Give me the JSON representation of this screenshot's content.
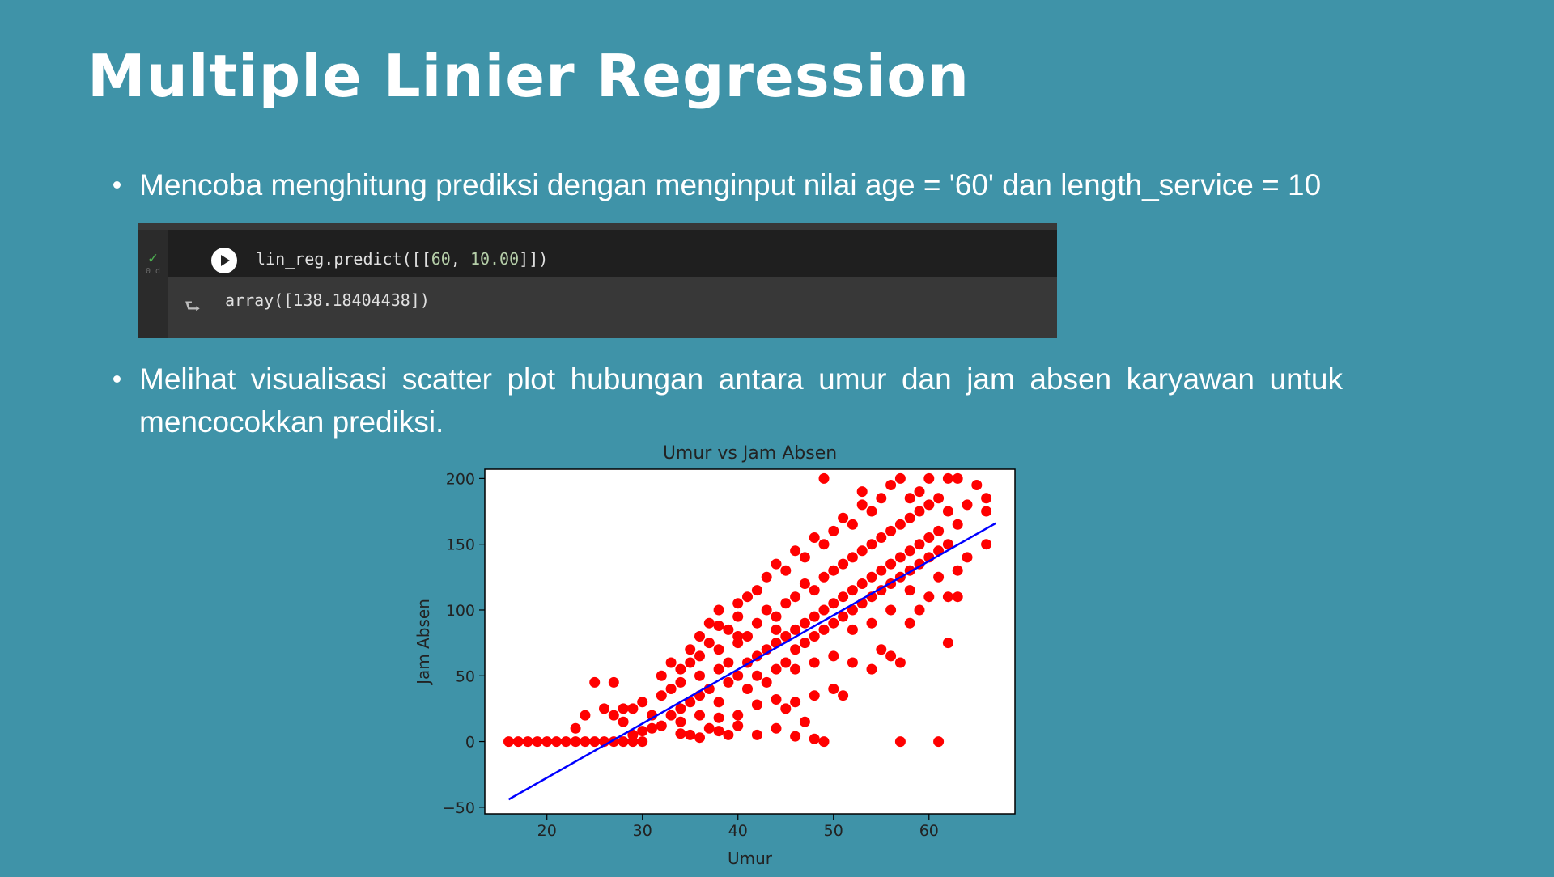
{
  "slide": {
    "title": "Multiple Linier Regression",
    "bullet_1": "Mencoba menghitung prediksi dengan menginput nilai age = '60' dan length_service = 10",
    "bullet_2_line1": "Melihat visualisasi scatter plot hubungan antara umur dan jam absen karyawan untuk",
    "bullet_2_line2": "mencocokkan prediksi."
  },
  "code_cell": {
    "status": "✓",
    "exec_time": "0 d",
    "input_prefix": "lin_reg.predict([[",
    "input_num_1": "60",
    "input_sep": ", ",
    "input_num_2": "10.00",
    "input_suffix": "]])",
    "output": "array([138.18404438])"
  },
  "colors": {
    "background": "#3f93a8",
    "points": "#ff0000",
    "line": "#0000ff"
  },
  "chart_data": {
    "type": "scatter",
    "title": "Umur vs Jam Absen",
    "xlabel": "Umur",
    "ylabel": "Jam Absen",
    "xlim": [
      13.5,
      69
    ],
    "ylim": [
      -55,
      207
    ],
    "xticks": [
      20,
      30,
      40,
      50,
      60
    ],
    "yticks": [
      -50,
      0,
      50,
      100,
      150,
      200
    ],
    "grid": false,
    "regression_line": {
      "x": [
        16,
        67
      ],
      "y": [
        -44,
        166
      ]
    },
    "points": [
      [
        16,
        0
      ],
      [
        17,
        0
      ],
      [
        18,
        0
      ],
      [
        19,
        0
      ],
      [
        20,
        0
      ],
      [
        21,
        0
      ],
      [
        22,
        0
      ],
      [
        23,
        0
      ],
      [
        24,
        0
      ],
      [
        25,
        0
      ],
      [
        26,
        0
      ],
      [
        27,
        0
      ],
      [
        28,
        0
      ],
      [
        29,
        0
      ],
      [
        30,
        0
      ],
      [
        23,
        10
      ],
      [
        24,
        20
      ],
      [
        25,
        45
      ],
      [
        27,
        45
      ],
      [
        26,
        25
      ],
      [
        27,
        20
      ],
      [
        28,
        15
      ],
      [
        28,
        25
      ],
      [
        29,
        25
      ],
      [
        30,
        30
      ],
      [
        29,
        5
      ],
      [
        31,
        10
      ],
      [
        31,
        20
      ],
      [
        32,
        35
      ],
      [
        32,
        50
      ],
      [
        33,
        40
      ],
      [
        33,
        20
      ],
      [
        33,
        60
      ],
      [
        34,
        45
      ],
      [
        34,
        55
      ],
      [
        34,
        15
      ],
      [
        35,
        30
      ],
      [
        35,
        60
      ],
      [
        35,
        70
      ],
      [
        35,
        5
      ],
      [
        36,
        50
      ],
      [
        36,
        80
      ],
      [
        36,
        65
      ],
      [
        36,
        20
      ],
      [
        37,
        40
      ],
      [
        37,
        75
      ],
      [
        37,
        90
      ],
      [
        37,
        10
      ],
      [
        38,
        55
      ],
      [
        38,
        70
      ],
      [
        38,
        100
      ],
      [
        38,
        30
      ],
      [
        39,
        45
      ],
      [
        39,
        85
      ],
      [
        39,
        60
      ],
      [
        39,
        5
      ],
      [
        40,
        50
      ],
      [
        40,
        75
      ],
      [
        40,
        95
      ],
      [
        40,
        20
      ],
      [
        40,
        105
      ],
      [
        41,
        60
      ],
      [
        41,
        80
      ],
      [
        41,
        40
      ],
      [
        41,
        110
      ],
      [
        42,
        65
      ],
      [
        42,
        90
      ],
      [
        42,
        50
      ],
      [
        42,
        115
      ],
      [
        43,
        70
      ],
      [
        43,
        100
      ],
      [
        43,
        45
      ],
      [
        43,
        125
      ],
      [
        44,
        75
      ],
      [
        44,
        95
      ],
      [
        44,
        55
      ],
      [
        44,
        135
      ],
      [
        45,
        80
      ],
      [
        45,
        105
      ],
      [
        45,
        60
      ],
      [
        45,
        130
      ],
      [
        45,
        25
      ],
      [
        46,
        85
      ],
      [
        46,
        110
      ],
      [
        46,
        70
      ],
      [
        46,
        145
      ],
      [
        47,
        90
      ],
      [
        47,
        120
      ],
      [
        47,
        75
      ],
      [
        47,
        140
      ],
      [
        47,
        15
      ],
      [
        48,
        95
      ],
      [
        48,
        115
      ],
      [
        48,
        80
      ],
      [
        48,
        155
      ],
      [
        48,
        35
      ],
      [
        49,
        100
      ],
      [
        49,
        125
      ],
      [
        49,
        85
      ],
      [
        49,
        150
      ],
      [
        49,
        200
      ],
      [
        49,
        0
      ],
      [
        50,
        105
      ],
      [
        50,
        130
      ],
      [
        50,
        90
      ],
      [
        50,
        160
      ],
      [
        50,
        40
      ],
      [
        51,
        110
      ],
      [
        51,
        135
      ],
      [
        51,
        95
      ],
      [
        51,
        170
      ],
      [
        51,
        35
      ],
      [
        52,
        115
      ],
      [
        52,
        140
      ],
      [
        52,
        100
      ],
      [
        52,
        165
      ],
      [
        52,
        60
      ],
      [
        53,
        120
      ],
      [
        53,
        145
      ],
      [
        53,
        105
      ],
      [
        53,
        180
      ],
      [
        53,
        190
      ],
      [
        54,
        125
      ],
      [
        54,
        150
      ],
      [
        54,
        110
      ],
      [
        54,
        175
      ],
      [
        54,
        55
      ],
      [
        55,
        130
      ],
      [
        55,
        155
      ],
      [
        55,
        115
      ],
      [
        55,
        185
      ],
      [
        55,
        70
      ],
      [
        56,
        135
      ],
      [
        56,
        160
      ],
      [
        56,
        120
      ],
      [
        56,
        195
      ],
      [
        56,
        65
      ],
      [
        57,
        140
      ],
      [
        57,
        165
      ],
      [
        57,
        125
      ],
      [
        57,
        200
      ],
      [
        57,
        0
      ],
      [
        57,
        60
      ],
      [
        58,
        145
      ],
      [
        58,
        170
      ],
      [
        58,
        130
      ],
      [
        58,
        185
      ],
      [
        58,
        90
      ],
      [
        59,
        150
      ],
      [
        59,
        175
      ],
      [
        59,
        135
      ],
      [
        59,
        190
      ],
      [
        59,
        100
      ],
      [
        60,
        155
      ],
      [
        60,
        180
      ],
      [
        60,
        140
      ],
      [
        60,
        200
      ],
      [
        60,
        110
      ],
      [
        61,
        160
      ],
      [
        61,
        185
      ],
      [
        61,
        145
      ],
      [
        61,
        125
      ],
      [
        61,
        0
      ],
      [
        62,
        150
      ],
      [
        62,
        175
      ],
      [
        62,
        110
      ],
      [
        62,
        200
      ],
      [
        62,
        75
      ],
      [
        63,
        130
      ],
      [
        63,
        165
      ],
      [
        63,
        110
      ],
      [
        63,
        200
      ],
      [
        64,
        140
      ],
      [
        64,
        180
      ],
      [
        65,
        195
      ],
      [
        66,
        175
      ],
      [
        66,
        185
      ],
      [
        66,
        150
      ],
      [
        30,
        8
      ],
      [
        32,
        12
      ],
      [
        34,
        6
      ],
      [
        36,
        3
      ],
      [
        38,
        8
      ],
      [
        40,
        12
      ],
      [
        42,
        5
      ],
      [
        44,
        10
      ],
      [
        46,
        4
      ],
      [
        48,
        2
      ],
      [
        42,
        28
      ],
      [
        44,
        32
      ],
      [
        46,
        30
      ],
      [
        38,
        18
      ],
      [
        36,
        35
      ],
      [
        34,
        25
      ],
      [
        46,
        55
      ],
      [
        50,
        65
      ],
      [
        52,
        85
      ],
      [
        54,
        90
      ],
      [
        56,
        100
      ],
      [
        58,
        115
      ],
      [
        48,
        60
      ],
      [
        44,
        85
      ],
      [
        40,
        80
      ],
      [
        38,
        88
      ]
    ]
  }
}
